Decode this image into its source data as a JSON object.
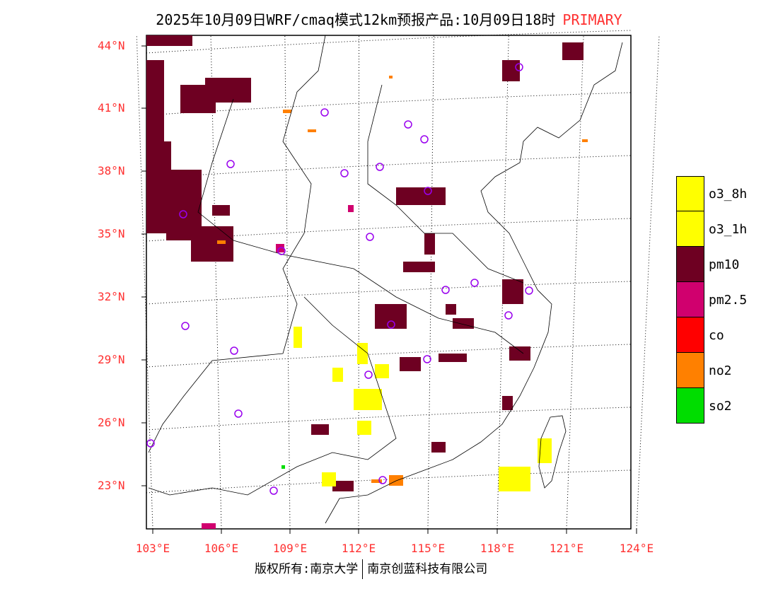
{
  "title": {
    "main": "2025年10月09日WRF/cmaq模式12km预报产品:10月09日18时",
    "tag": "PRIMARY"
  },
  "axes": {
    "lat_labels": [
      "44°N",
      "41°N",
      "38°N",
      "35°N",
      "32°N",
      "29°N",
      "26°N",
      "23°N"
    ],
    "lon_labels": [
      "103°E",
      "106°E",
      "109°E",
      "112°E",
      "115°E",
      "118°E",
      "121°E",
      "124°E"
    ]
  },
  "legend": [
    {
      "label": "o3_8h",
      "color": "#ffff00"
    },
    {
      "label": "o3_1h",
      "color": "#ffff00"
    },
    {
      "label": "pm10",
      "color": "#6e0022"
    },
    {
      "label": "pm2.5",
      "color": "#d0006e"
    },
    {
      "label": "co",
      "color": "#ff0000"
    },
    {
      "label": "no2",
      "color": "#ff8000"
    },
    {
      "label": "so2",
      "color": "#00dd00"
    }
  ],
  "footer": {
    "left": "版权所有:南京大学",
    "right": "南京创蓝科技有限公司"
  },
  "colors": {
    "station": "#9900ee",
    "axis_label": "#ff3030"
  }
}
